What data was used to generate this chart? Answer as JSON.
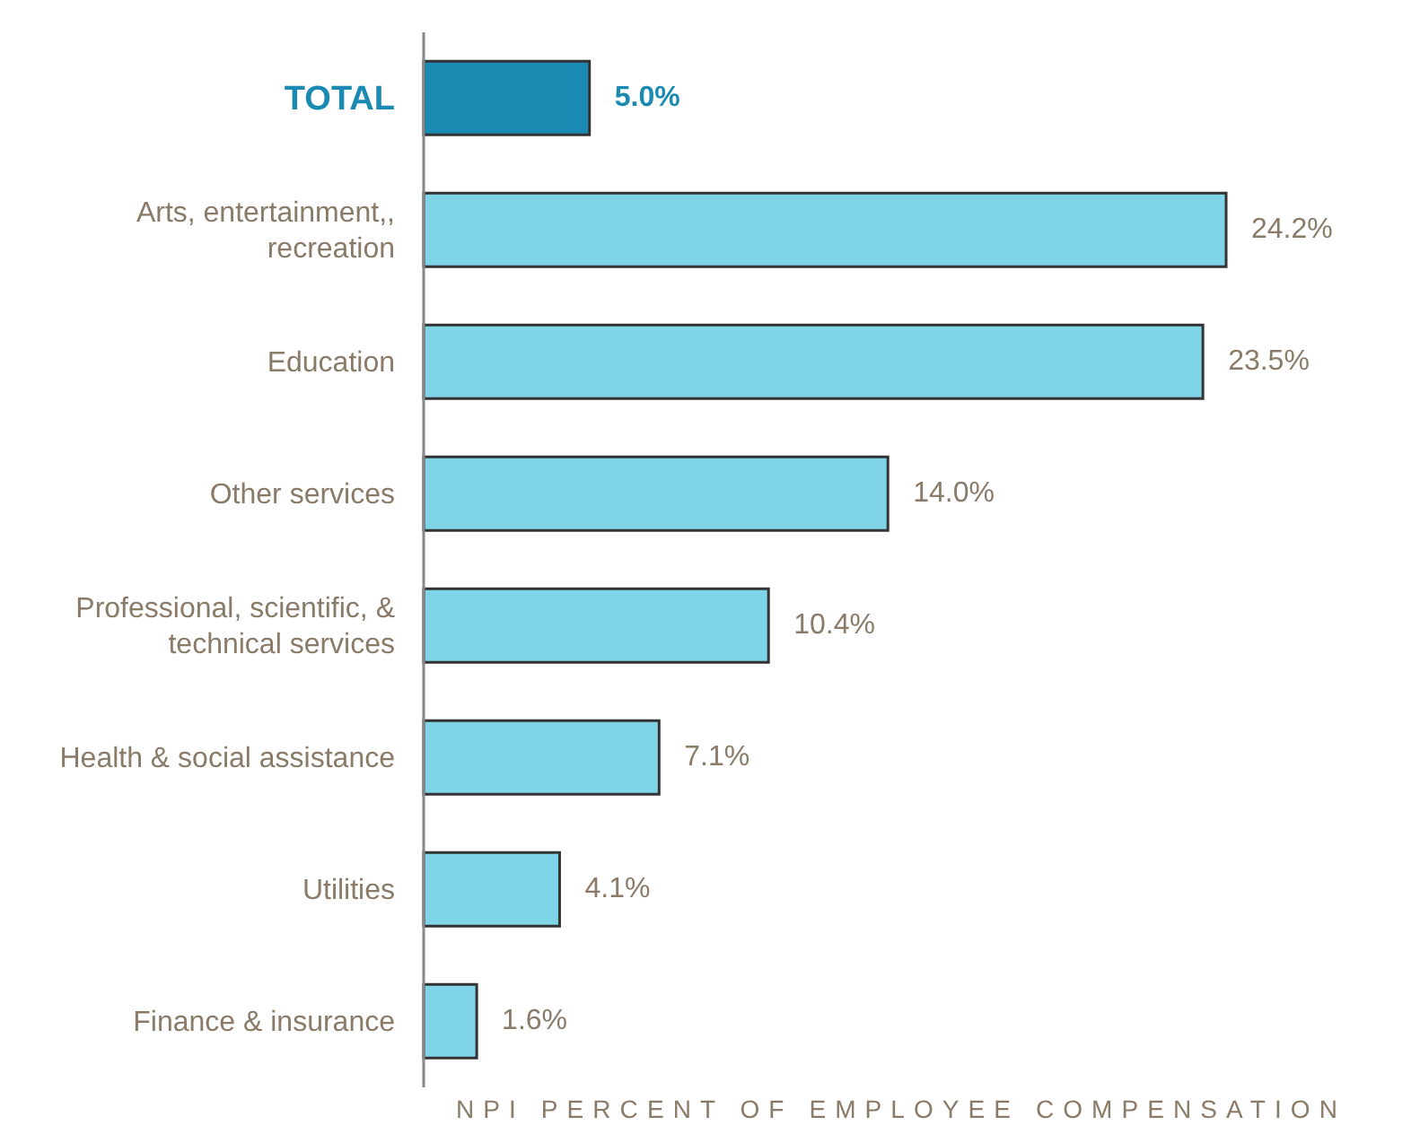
{
  "chart_data": {
    "type": "bar",
    "orientation": "horizontal",
    "xlabel": "NPI PERCENT OF EMPLOYEE COMPENSATION",
    "categories": [
      "TOTAL",
      "Arts, entertainment,, recreation",
      "Education",
      "Other services",
      "Professional, scientific, & technical services",
      "Health & social assistance",
      "Utilities",
      "Finance & insurance"
    ],
    "values": [
      5.0,
      24.2,
      23.5,
      14.0,
      10.4,
      7.1,
      4.1,
      1.6
    ],
    "colors": [
      "#1b8ab3",
      "#80d4e8",
      "#80d4e8",
      "#80d4e8",
      "#80d4e8",
      "#80d4e8",
      "#80d4e8",
      "#80d4e8"
    ],
    "value_labels": [
      "5.0%",
      "24.2%",
      "23.5%",
      "14.0%",
      "10.4%",
      "7.1%",
      "4.1%",
      "1.6%"
    ]
  }
}
